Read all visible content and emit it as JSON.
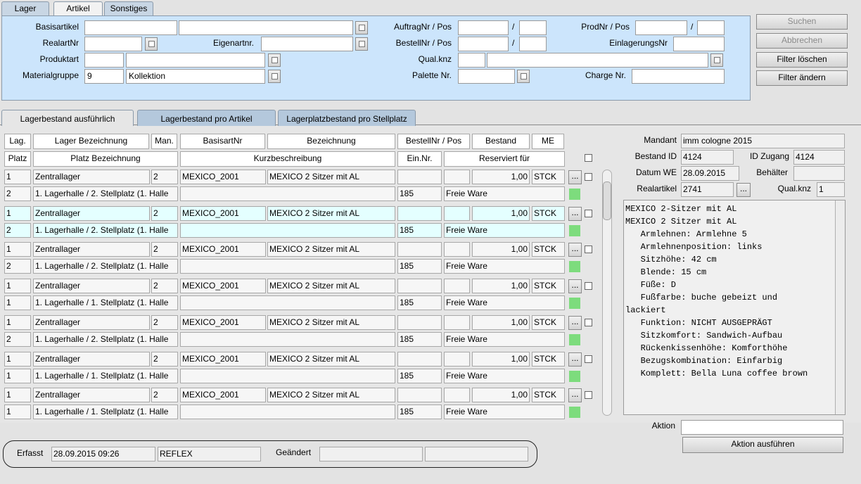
{
  "tabs": {
    "top": [
      "Lager",
      "Artikel",
      "Sonstiges"
    ],
    "bottom": [
      "Lagerbestand ausführlich",
      "Lagerbestand pro Artikel",
      "Lagerplatzbestand pro Stellplatz"
    ]
  },
  "filter": {
    "labels": [
      "Basisartikel",
      "RealartNr",
      "Eigenartnr.",
      "Produktart",
      "Materialgruppe",
      "AuftragNr / Pos",
      "BestellNr / Pos",
      "Qual.knz",
      "Palette Nr.",
      "ProdNr / Pos",
      "EinlagerungsNr",
      "Charge Nr."
    ],
    "separator": "/",
    "materialgruppe": "9",
    "materialgruppe_name": "Kollektion"
  },
  "buttons": [
    "Suchen",
    "Abbrechen",
    "Filter löschen",
    "Filter ändern"
  ],
  "table": {
    "header_top": [
      "Lag.",
      "Lager Bezeichnung",
      "Man.",
      "BasisartNr",
      "Bezeichnung",
      "BestellNr / Pos",
      "Bestand",
      "ME"
    ],
    "header_bottom": [
      "Platz",
      "Platz Bezeichnung",
      "Kurzbeschreibung",
      "Ein.Nr.",
      "Reserviert für"
    ],
    "more_button": "...",
    "rows": [
      {
        "lag": "1",
        "lager": "Zentrallager",
        "man": "2",
        "basisartnr": "MEXICO_2001",
        "bezeichnung": "MEXICO 2 Sitzer mit AL",
        "bestand": "1,00",
        "me": "STCK",
        "platz": "2",
        "platz_bezeichnung": "1. Lagerhalle / 2. Stellplatz (1. Halle",
        "ein_nr": "185",
        "reserviert": "Freie Ware"
      },
      {
        "lag": "1",
        "lager": "Zentrallager",
        "man": "2",
        "basisartnr": "MEXICO_2001",
        "bezeichnung": "MEXICO 2 Sitzer mit AL",
        "bestand": "1,00",
        "me": "STCK",
        "platz": "2",
        "platz_bezeichnung": "1. Lagerhalle / 2. Stellplatz (1. Halle",
        "ein_nr": "185",
        "reserviert": "Freie Ware"
      },
      {
        "lag": "1",
        "lager": "Zentrallager",
        "man": "2",
        "basisartnr": "MEXICO_2001",
        "bezeichnung": "MEXICO 2 Sitzer mit AL",
        "bestand": "1,00",
        "me": "STCK",
        "platz": "2",
        "platz_bezeichnung": "1. Lagerhalle / 2. Stellplatz (1. Halle",
        "ein_nr": "185",
        "reserviert": "Freie Ware"
      },
      {
        "lag": "1",
        "lager": "Zentrallager",
        "man": "2",
        "basisartnr": "MEXICO_2001",
        "bezeichnung": "MEXICO 2 Sitzer mit AL",
        "bestand": "1,00",
        "me": "STCK",
        "platz": "1",
        "platz_bezeichnung": "1. Lagerhalle / 1. Stellplatz (1. Halle",
        "ein_nr": "185",
        "reserviert": "Freie Ware"
      },
      {
        "lag": "1",
        "lager": "Zentrallager",
        "man": "2",
        "basisartnr": "MEXICO_2001",
        "bezeichnung": "MEXICO 2 Sitzer mit AL",
        "bestand": "1,00",
        "me": "STCK",
        "platz": "2",
        "platz_bezeichnung": "1. Lagerhalle / 2. Stellplatz (1. Halle",
        "ein_nr": "185",
        "reserviert": "Freie Ware"
      },
      {
        "lag": "1",
        "lager": "Zentrallager",
        "man": "2",
        "basisartnr": "MEXICO_2001",
        "bezeichnung": "MEXICO 2 Sitzer mit AL",
        "bestand": "1,00",
        "me": "STCK",
        "platz": "1",
        "platz_bezeichnung": "1. Lagerhalle / 1. Stellplatz (1. Halle",
        "ein_nr": "185",
        "reserviert": "Freie Ware"
      },
      {
        "lag": "1",
        "lager": "Zentrallager",
        "man": "2",
        "basisartnr": "MEXICO_2001",
        "bezeichnung": "MEXICO 2 Sitzer mit AL",
        "bestand": "1,00",
        "me": "STCK",
        "platz": "1",
        "platz_bezeichnung": "1. Lagerhalle / 1. Stellplatz (1. Halle",
        "ein_nr": "185",
        "reserviert": "Freie Ware"
      }
    ]
  },
  "details": {
    "labels": {
      "mandant": "Mandant",
      "bestand_id": "Bestand ID",
      "id_zugang": "ID Zugang",
      "datum_we": "Datum WE",
      "behaelter": "Behälter",
      "realartikel": "Realartikel",
      "qual_knz": "Qual.knz"
    },
    "mandant": "imm cologne 2015",
    "bestand_id": "4124",
    "id_zugang": "4124",
    "datum_we": "28.09.2015",
    "realartikel": "2741",
    "qual_knz": "1",
    "description": [
      "MEXICO 2-Sitzer mit AL",
      "MEXICO 2 Sitzer mit AL",
      "   Armlehnen: Armlehne 5",
      "   Armlehnenposition: links",
      "   Sitzhöhe: 42 cm",
      "   Blende: 15 cm",
      "   Füße: D",
      "   Fußfarbe: buche gebeizt und",
      "lackiert",
      "   Funktion: NICHT AUSGEPRÄGT",
      "   Sitzkomfort: Sandwich-Aufbau",
      "   Rückenkissenhöhe: Komforthöhe",
      "   Bezugskombination: Einfarbig",
      "   Komplett: Bella Luna coffee brown"
    ]
  },
  "aktion": {
    "label": "Aktion",
    "button": "Aktion ausführen"
  },
  "footer": {
    "erfasst_label": "Erfasst",
    "erfasst": "28.09.2015 09:26",
    "erfasst_von": "REFLEX",
    "geaendert_label": "Geändert"
  }
}
